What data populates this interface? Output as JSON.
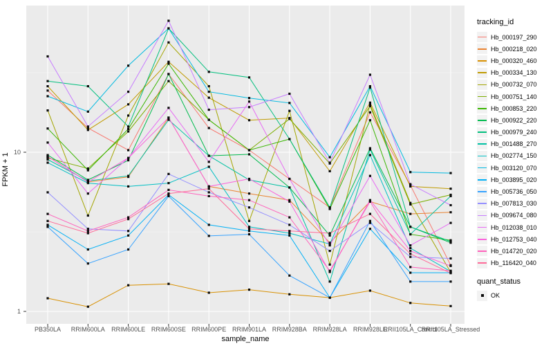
{
  "chart_data": {
    "type": "line",
    "title": "",
    "xlabel": "sample_name",
    "ylabel": "FPKM + 1",
    "y_scale": "log10",
    "ylim": [
      0.84,
      80
    ],
    "y_ticks": [
      1,
      10
    ],
    "y_tick_labels": [
      "1",
      "10"
    ],
    "grid": "on",
    "legend_position": "right",
    "legend_title": "tracking_id",
    "quant_title": "quant_status",
    "quant_items": [
      "OK"
    ],
    "panel_color": "#EBEBEB",
    "grid_color": "#FFFFFF",
    "point_color": "#0a0a0a",
    "categories": [
      "PB350LA",
      "RRIM600LA",
      "RRIM600LE",
      "RRIM600SE",
      "RRIM600PE",
      "RRIM901LA",
      "RRIM928BA",
      "RRIM928LA",
      "RRIM928LE",
      "RRII105LA_Control",
      "RRII105LA_Stressed"
    ],
    "series": [
      {
        "name": "Hb_000197_290",
        "color": "#F8766D",
        "values": [
          24.4,
          14.2,
          10.3,
          31,
          14.2,
          10.3,
          6.8,
          4.5,
          17.8,
          6.2,
          1.95
        ]
      },
      {
        "name": "Hb_000218_020",
        "color": "#EA8331",
        "values": [
          9.4,
          6.5,
          7.0,
          16.5,
          6.1,
          5.5,
          5.0,
          2.7,
          4.9,
          4.1,
          4.2
        ]
      },
      {
        "name": "Hb_000320_460",
        "color": "#D89000",
        "values": [
          1.21,
          1.07,
          1.46,
          1.49,
          1.31,
          1.37,
          1.28,
          1.22,
          1.35,
          1.13,
          1.08
        ]
      },
      {
        "name": "Hb_000334_130",
        "color": "#C09B00",
        "values": [
          26,
          13.8,
          20,
          37,
          22,
          15.9,
          16.4,
          7.6,
          20.5,
          6.1,
          5.9
        ]
      },
      {
        "name": "Hb_000732_070",
        "color": "#A3A500",
        "values": [
          18.3,
          4.0,
          17,
          49,
          26,
          3.7,
          18.2,
          1.97,
          20,
          4.8,
          1.76
        ]
      },
      {
        "name": "Hb_000751_140",
        "color": "#7CAE00",
        "values": [
          9.2,
          7.9,
          13.5,
          28,
          16,
          10.3,
          16.2,
          8.5,
          19.5,
          4.7,
          5.4
        ]
      },
      {
        "name": "Hb_000853_220",
        "color": "#39B600",
        "values": [
          14.1,
          7.7,
          14.0,
          36,
          16,
          10.3,
          12.1,
          4.4,
          15.9,
          3.05,
          2.8
        ]
      },
      {
        "name": "Hb_000922_220",
        "color": "#00BB4E",
        "values": [
          9.6,
          6.7,
          8.9,
          31,
          9.5,
          9.7,
          6.0,
          3.0,
          10.6,
          3.4,
          2.7
        ]
      },
      {
        "name": "Hb_000979_240",
        "color": "#00BF7D",
        "values": [
          28,
          26,
          14.5,
          60,
          32,
          29.5,
          12.1,
          4.5,
          25.5,
          3.4,
          2.75
        ]
      },
      {
        "name": "Hb_001488_270",
        "color": "#00C1A3",
        "values": [
          9.0,
          6.6,
          7.1,
          16,
          9.5,
          6.7,
          6.0,
          1.54,
          10.4,
          3.05,
          5.3
        ]
      },
      {
        "name": "Hb_002774_150",
        "color": "#00BFC4",
        "values": [
          8.6,
          6.4,
          6.1,
          6.4,
          8.1,
          3.4,
          3.1,
          2.65,
          9.6,
          2.5,
          1.78
        ]
      },
      {
        "name": "Hb_003120_070",
        "color": "#00BAE0",
        "values": [
          22.5,
          18,
          35,
          60,
          24,
          21.9,
          20.4,
          9.3,
          26,
          7.5,
          7.4
        ]
      },
      {
        "name": "Hb_003895_020",
        "color": "#00B0F6",
        "values": [
          3.5,
          2.45,
          3.0,
          5.4,
          3.5,
          3.2,
          3.0,
          1.22,
          3.3,
          1.75,
          1.75
        ]
      },
      {
        "name": "Hb_005736_050",
        "color": "#35A2FF",
        "values": [
          3.4,
          2.0,
          2.45,
          5.3,
          2.98,
          3.05,
          1.68,
          1.22,
          3.7,
          1.54,
          1.54
        ]
      },
      {
        "name": "Hb_007813_030",
        "color": "#9590FF",
        "values": [
          5.6,
          3.3,
          3.2,
          7.3,
          5.6,
          4.5,
          3.5,
          2.4,
          3.6,
          2.2,
          2.15
        ]
      },
      {
        "name": "Hb_009674_080",
        "color": "#C77CFF",
        "values": [
          40,
          14.5,
          24,
          67,
          18.5,
          19.2,
          23.3,
          8.6,
          30.7,
          6.3,
          4.65
        ]
      },
      {
        "name": "Hb_012038_010",
        "color": "#E76BF3",
        "values": [
          11.5,
          5.5,
          9.2,
          19,
          8.7,
          20.8,
          6.8,
          2.6,
          7.1,
          2.6,
          3.6
        ]
      },
      {
        "name": "Hb_012753_040",
        "color": "#FA62DB",
        "values": [
          9.4,
          6.5,
          9.2,
          16.5,
          6.1,
          6.8,
          4.9,
          1.77,
          5.0,
          2.4,
          1.93
        ]
      },
      {
        "name": "Hb_014720_020",
        "color": "#FF62BC",
        "values": [
          4.1,
          3.2,
          3.9,
          5.8,
          5.3,
          5.0,
          3.9,
          1.8,
          4.9,
          1.9,
          1.8
        ]
      },
      {
        "name": "Hb_116420_040",
        "color": "#FF6A98",
        "values": [
          3.7,
          3.1,
          3.8,
          5.5,
          5.9,
          3.3,
          3.2,
          3.1,
          4.1,
          2.3,
          1.74
        ]
      }
    ]
  }
}
